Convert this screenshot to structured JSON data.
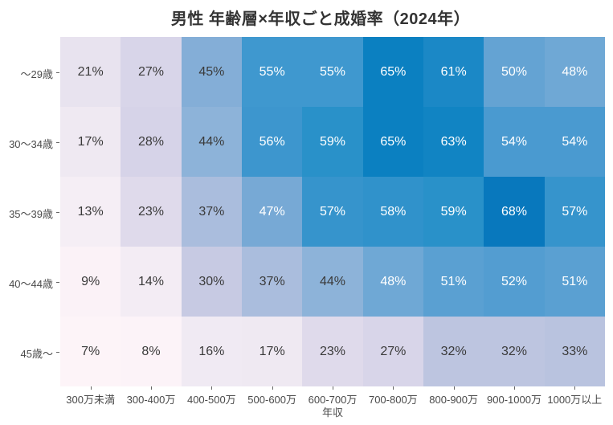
{
  "chart_data": {
    "type": "heatmap",
    "title": "男性 年齢層×年収ごと成婚率（2024年）",
    "xlabel": "年収",
    "ylabel": "",
    "rows": [
      "～29歳",
      "30～34歳",
      "35～39歳",
      "40～44歳",
      "45歳～"
    ],
    "columns": [
      "300万未満",
      "300-400万",
      "400-500万",
      "500-600万",
      "600-700万",
      "700-800万",
      "800-900万",
      "900-1000万",
      "1000万以上"
    ],
    "values": [
      [
        21,
        27,
        45,
        55,
        55,
        65,
        61,
        50,
        48
      ],
      [
        17,
        28,
        44,
        56,
        59,
        65,
        63,
        54,
        54
      ],
      [
        13,
        23,
        37,
        47,
        57,
        58,
        59,
        68,
        57
      ],
      [
        9,
        14,
        30,
        37,
        44,
        48,
        51,
        52,
        51
      ],
      [
        7,
        8,
        16,
        17,
        23,
        27,
        32,
        32,
        33
      ]
    ],
    "value_suffix": "%",
    "grid": false,
    "legend": "none",
    "background": "#ffffff",
    "title_color": "#333333",
    "axis_text_color": "#4a4a4a",
    "annot_text_dark": "#3a3a3a",
    "annot_text_light": "#ffffff",
    "annot_light_threshold": 46,
    "color_stops": [
      [
        0,
        "#fff7fb"
      ],
      [
        7,
        "#fdf4f8"
      ],
      [
        8,
        "#fcf3f8"
      ],
      [
        9,
        "#fbf2f7"
      ],
      [
        13,
        "#f5eef5"
      ],
      [
        14,
        "#f3ecf4"
      ],
      [
        16,
        "#f0eaf3"
      ],
      [
        17,
        "#efe9f2"
      ],
      [
        21,
        "#e8e3ef"
      ],
      [
        23,
        "#dfdaeb"
      ],
      [
        27,
        "#d8d5e9"
      ],
      [
        28,
        "#d6d3e8"
      ],
      [
        30,
        "#c7cae3"
      ],
      [
        32,
        "#bdc5e0"
      ],
      [
        33,
        "#b9c3df"
      ],
      [
        37,
        "#aabddd"
      ],
      [
        44,
        "#8db3d9"
      ],
      [
        45,
        "#84aed7"
      ],
      [
        47,
        "#77a9d5"
      ],
      [
        48,
        "#6fa8d5"
      ],
      [
        50,
        "#64a3d3"
      ],
      [
        51,
        "#5aa0d2"
      ],
      [
        52,
        "#539dd1"
      ],
      [
        54,
        "#4a9ad0"
      ],
      [
        55,
        "#3f98cf"
      ],
      [
        56,
        "#3d96ce"
      ],
      [
        57,
        "#3694cc"
      ],
      [
        58,
        "#3092cb"
      ],
      [
        59,
        "#2991c9"
      ],
      [
        61,
        "#1b88c6"
      ],
      [
        63,
        "#1184c3"
      ],
      [
        65,
        "#0b80c1"
      ],
      [
        68,
        "#0878bd"
      ],
      [
        100,
        "#023858"
      ]
    ]
  }
}
